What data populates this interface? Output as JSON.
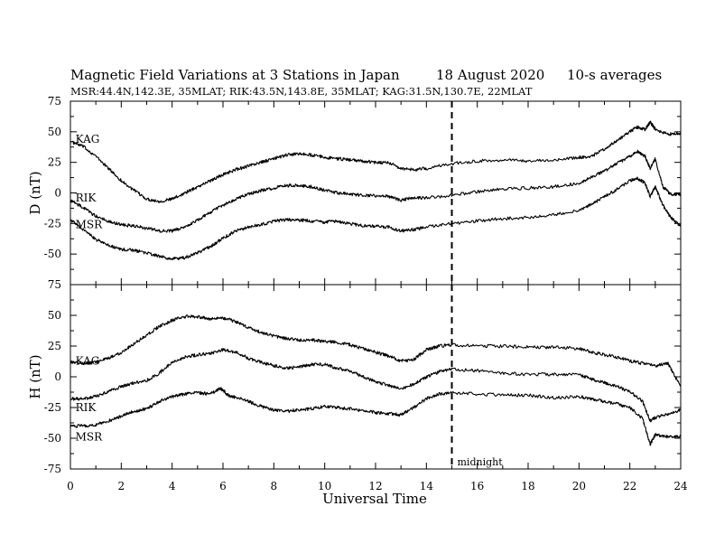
{
  "chart_data": {
    "type": "line",
    "title": "Magnetic Field Variations at 3 Stations in Japan",
    "date": "18  August  2020",
    "averaging": "10-s averages",
    "subtitle": "MSR:44.4N,142.3E, 35MLAT;  RIK:43.5N,143.8E, 35MLAT;  KAG:31.5N,130.7E, 22MLAT",
    "xlabel": "Universal Time",
    "xlim": [
      0,
      24
    ],
    "xticks": [
      "0",
      "2",
      "4",
      "6",
      "8",
      "10",
      "12",
      "14",
      "16",
      "18",
      "20",
      "22",
      "24"
    ],
    "annotation": {
      "x": 15,
      "label": "midnight",
      "style": "dashed vertical line"
    },
    "panels": [
      {
        "ylabel": "D (nT)",
        "ylim": [
          -75,
          75
        ],
        "yticks": [
          "75",
          "50",
          "25",
          "0",
          "-25",
          "-50",
          "-75"
        ],
        "station_labels": [
          {
            "text": "KAG",
            "x": 0.2,
            "y": 44
          },
          {
            "text": "RIK",
            "x": 0.2,
            "y": -4
          },
          {
            "text": "MSR",
            "x": 0.2,
            "y": -26
          }
        ],
        "series": [
          {
            "name": "KAG",
            "x": [
              0,
              0.5,
              1,
              1.5,
              2,
              2.5,
              3,
              3.5,
              4,
              4.5,
              5,
              5.5,
              6,
              6.5,
              7,
              7.5,
              8,
              8.5,
              9,
              9.5,
              10,
              10.5,
              11,
              11.5,
              12,
              12.5,
              13,
              13.5,
              14,
              15,
              16,
              17,
              18,
              19,
              20,
              20.5,
              21,
              21.5,
              22,
              22.3,
              22.6,
              22.8,
              23,
              23.5,
              24
            ],
            "y": [
              42,
              38,
              30,
              20,
              10,
              2,
              -5,
              -7,
              -5,
              0,
              5,
              10,
              15,
              19,
              22,
              25,
              28,
              31,
              32,
              31,
              29,
              28,
              27,
              26,
              25,
              25,
              20,
              19,
              20,
              24,
              26,
              27,
              26,
              27,
              29,
              30,
              36,
              43,
              50,
              54,
              52,
              58,
              52,
              48,
              49
            ]
          },
          {
            "name": "RIK",
            "x": [
              0,
              0.5,
              1,
              1.5,
              2,
              2.5,
              3,
              3.5,
              4,
              4.5,
              5,
              5.5,
              6,
              6.5,
              7,
              7.5,
              8,
              8.5,
              9,
              9.5,
              10,
              10.5,
              11,
              11.5,
              12,
              12.5,
              13,
              13.5,
              14,
              15,
              16,
              17,
              18,
              19,
              20,
              20.5,
              21,
              21.5,
              22,
              22.3,
              22.6,
              22.8,
              23,
              23.3,
              23.6,
              24
            ],
            "y": [
              -6,
              -12,
              -19,
              -23,
              -26,
              -27,
              -29,
              -31,
              -31,
              -28,
              -22,
              -16,
              -10,
              -5,
              -1,
              2,
              4,
              6,
              6,
              5,
              2,
              0,
              -1,
              -2,
              -2,
              -3,
              -6,
              -4,
              -4,
              -2,
              1,
              3,
              4,
              5,
              8,
              13,
              18,
              24,
              30,
              34,
              30,
              20,
              28,
              5,
              -1,
              -1
            ]
          },
          {
            "name": "MSR",
            "x": [
              0,
              0.5,
              1,
              1.5,
              2,
              2.5,
              3,
              3.5,
              4,
              4.5,
              5,
              5.5,
              6,
              6.5,
              7,
              7.5,
              8,
              8.5,
              9,
              9.5,
              10,
              10.5,
              11,
              11.5,
              12,
              12.5,
              13,
              13.5,
              14,
              15,
              16,
              17,
              18,
              19,
              20,
              20.5,
              21,
              21.5,
              22,
              22.3,
              22.6,
              22.8,
              23,
              23.3,
              23.6,
              24
            ],
            "y": [
              -22,
              -30,
              -38,
              -43,
              -46,
              -47,
              -49,
              -52,
              -54,
              -53,
              -49,
              -44,
              -37,
              -31,
              -28,
              -26,
              -23,
              -22,
              -22,
              -23,
              -24,
              -23,
              -25,
              -27,
              -27,
              -28,
              -31,
              -30,
              -28,
              -25,
              -23,
              -21,
              -20,
              -18,
              -14,
              -9,
              -3,
              3,
              10,
              12,
              8,
              -3,
              5,
              -10,
              -20,
              -27
            ]
          }
        ]
      },
      {
        "ylabel": "H (nT)",
        "ylim": [
          -75,
          75
        ],
        "yticks": [
          "75",
          "50",
          "25",
          "0",
          "-25",
          "-50",
          "-75"
        ],
        "station_labels": [
          {
            "text": "KAG",
            "x": 0.2,
            "y": 13
          },
          {
            "text": "RIK",
            "x": 0.2,
            "y": -25
          },
          {
            "text": "MSR",
            "x": 0.2,
            "y": -49
          }
        ],
        "series": [
          {
            "name": "KAG",
            "x": [
              0,
              0.5,
              1,
              1.5,
              2,
              2.5,
              3,
              3.5,
              4,
              4.5,
              5,
              5.5,
              6,
              6.5,
              7,
              7.5,
              8,
              8.5,
              9,
              9.5,
              10,
              10.5,
              11,
              11.5,
              12,
              12.5,
              13,
              13.5,
              14,
              14.5,
              15,
              16,
              17,
              18,
              19,
              20,
              20.5,
              21,
              21.5,
              22,
              22.5,
              23,
              23.5,
              24
            ],
            "y": [
              12,
              11,
              12,
              15,
              20,
              27,
              34,
              41,
              46,
              49,
              49,
              47,
              48,
              45,
              40,
              36,
              33,
              31,
              30,
              30,
              29,
              28,
              26,
              23,
              20,
              17,
              13,
              14,
              22,
              25,
              26,
              25,
              25,
              24,
              24,
              23,
              20,
              18,
              16,
              13,
              11,
              9,
              11,
              -8
            ]
          },
          {
            "name": "RIK",
            "x": [
              0,
              0.5,
              1,
              1.5,
              2,
              2.5,
              3,
              3.5,
              4,
              4.5,
              5,
              5.5,
              6,
              6.5,
              7,
              7.5,
              8,
              8.5,
              9,
              9.5,
              10,
              10.5,
              11,
              11.5,
              12,
              12.5,
              13,
              13.5,
              14,
              14.5,
              15,
              16,
              17,
              18,
              19,
              20,
              20.5,
              21,
              21.5,
              22,
              22.5,
              22.8,
              23,
              23.5,
              24
            ],
            "y": [
              -18,
              -18,
              -16,
              -12,
              -8,
              -5,
              -3,
              3,
              12,
              16,
              18,
              19,
              22,
              20,
              15,
              12,
              9,
              7,
              8,
              10,
              10,
              7,
              5,
              0,
              -4,
              -7,
              -10,
              -6,
              0,
              4,
              6,
              5,
              3,
              2,
              2,
              2,
              -2,
              -5,
              -8,
              -12,
              -20,
              -36,
              -33,
              -30,
              -27
            ]
          },
          {
            "name": "MSR",
            "x": [
              0,
              0.5,
              1,
              1.5,
              2,
              2.5,
              3,
              3.5,
              4,
              4.5,
              5,
              5.5,
              5.9,
              6.2,
              6.5,
              7,
              7.5,
              8,
              8.5,
              9,
              9.5,
              10,
              10.5,
              11,
              11.5,
              12,
              12.5,
              13,
              13.5,
              14,
              14.5,
              15,
              16,
              17,
              18,
              19,
              20,
              20.5,
              21,
              21.5,
              22,
              22.5,
              22.8,
              23,
              23.5,
              24
            ],
            "y": [
              -40,
              -40,
              -39,
              -36,
              -32,
              -28,
              -26,
              -20,
              -16,
              -14,
              -13,
              -14,
              -9,
              -15,
              -17,
              -20,
              -24,
              -27,
              -28,
              -27,
              -26,
              -24,
              -25,
              -26,
              -28,
              -29,
              -30,
              -31,
              -25,
              -18,
              -14,
              -13,
              -14,
              -15,
              -15,
              -17,
              -16,
              -18,
              -20,
              -22,
              -25,
              -34,
              -55,
              -47,
              -49,
              -48
            ]
          }
        ]
      }
    ]
  }
}
